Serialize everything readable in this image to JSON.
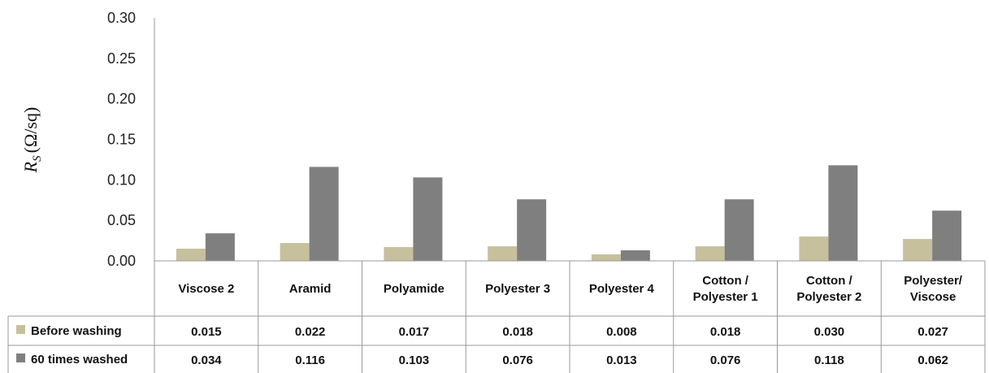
{
  "chart_data": {
    "type": "bar",
    "ylabel_main": "R",
    "ylabel_sub": "S",
    "ylabel_unit": "(Ω/sq)",
    "ylim": [
      0,
      0.3
    ],
    "yticks": [
      "0.00",
      "0.05",
      "0.10",
      "0.15",
      "0.20",
      "0.25",
      "0.30"
    ],
    "ytick_values": [
      0,
      0.05,
      0.1,
      0.15,
      0.2,
      0.25,
      0.3
    ],
    "categories": [
      [
        "Viscose 2"
      ],
      [
        "Aramid"
      ],
      [
        "Polyamide"
      ],
      [
        "Polyester 3"
      ],
      [
        "Polyester 4"
      ],
      [
        "Cotton /",
        "Polyester 1"
      ],
      [
        "Cotton /",
        "Polyester 2"
      ],
      [
        "Polyester/",
        "Viscose"
      ]
    ],
    "series": [
      {
        "name": "Before washing",
        "color": "#c7c09c",
        "values": [
          0.015,
          0.022,
          0.017,
          0.018,
          0.008,
          0.018,
          0.03,
          0.027
        ],
        "labels": [
          "0.015",
          "0.022",
          "0.017",
          "0.018",
          "0.008",
          "0.018",
          "0.030",
          "0.027"
        ]
      },
      {
        "name": "60 times washed",
        "color": "#7f7f7f",
        "values": [
          0.034,
          0.116,
          0.103,
          0.076,
          0.013,
          0.076,
          0.118,
          0.062
        ],
        "labels": [
          "0.034",
          "0.116",
          "0.103",
          "0.076",
          "0.013",
          "0.076",
          "0.118",
          "0.062"
        ]
      }
    ],
    "grid": false,
    "legend": "data-table-left"
  }
}
